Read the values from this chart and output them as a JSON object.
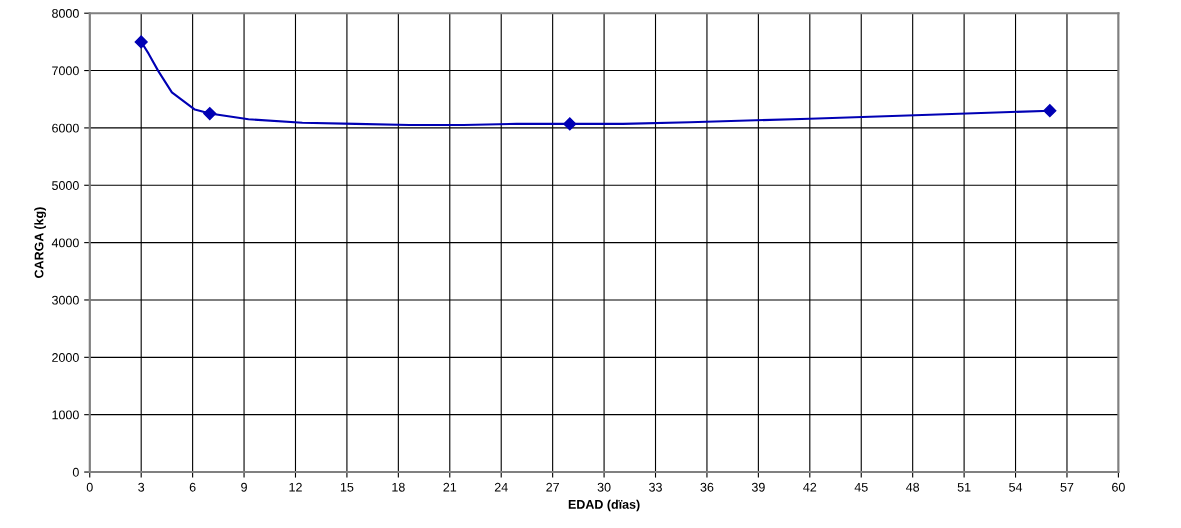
{
  "chart_data": {
    "type": "scatter",
    "xlabel": "EDAD (dïas)",
    "ylabel": "CARGA (kg)",
    "series": [
      {
        "color": "#0000b4",
        "marker": "diamond",
        "x": [
          3,
          7,
          28,
          56
        ],
        "values": [
          7500,
          6250,
          6070,
          6300
        ]
      },
      {
        "type": "line",
        "marker": "none",
        "color": "#0000b4",
        "x": [
          3,
          3.44,
          4.0,
          4.79,
          6.13,
          7,
          9.26,
          12.4,
          15.5,
          18.65,
          21.8,
          24.9,
          28,
          31.1,
          35,
          42,
          49,
          56
        ],
        "values": [
          7500,
          7290,
          6990,
          6620,
          6320,
          6250,
          6150,
          6090,
          6070,
          6050,
          6050,
          6070,
          6070,
          6070,
          6100,
          6160,
          6230,
          6300
        ]
      }
    ],
    "xlim": [
      0,
      60
    ],
    "xticks": [
      0,
      3,
      6,
      9,
      12,
      15,
      18,
      21,
      24,
      27,
      30,
      33,
      36,
      39,
      42,
      45,
      48,
      51,
      54,
      57,
      60
    ],
    "ylim": [
      0,
      8000
    ],
    "yticks": [
      0,
      1000,
      2000,
      3000,
      4000,
      5000,
      6000,
      7000,
      8000
    ],
    "grid": true,
    "line_style": "solid"
  }
}
